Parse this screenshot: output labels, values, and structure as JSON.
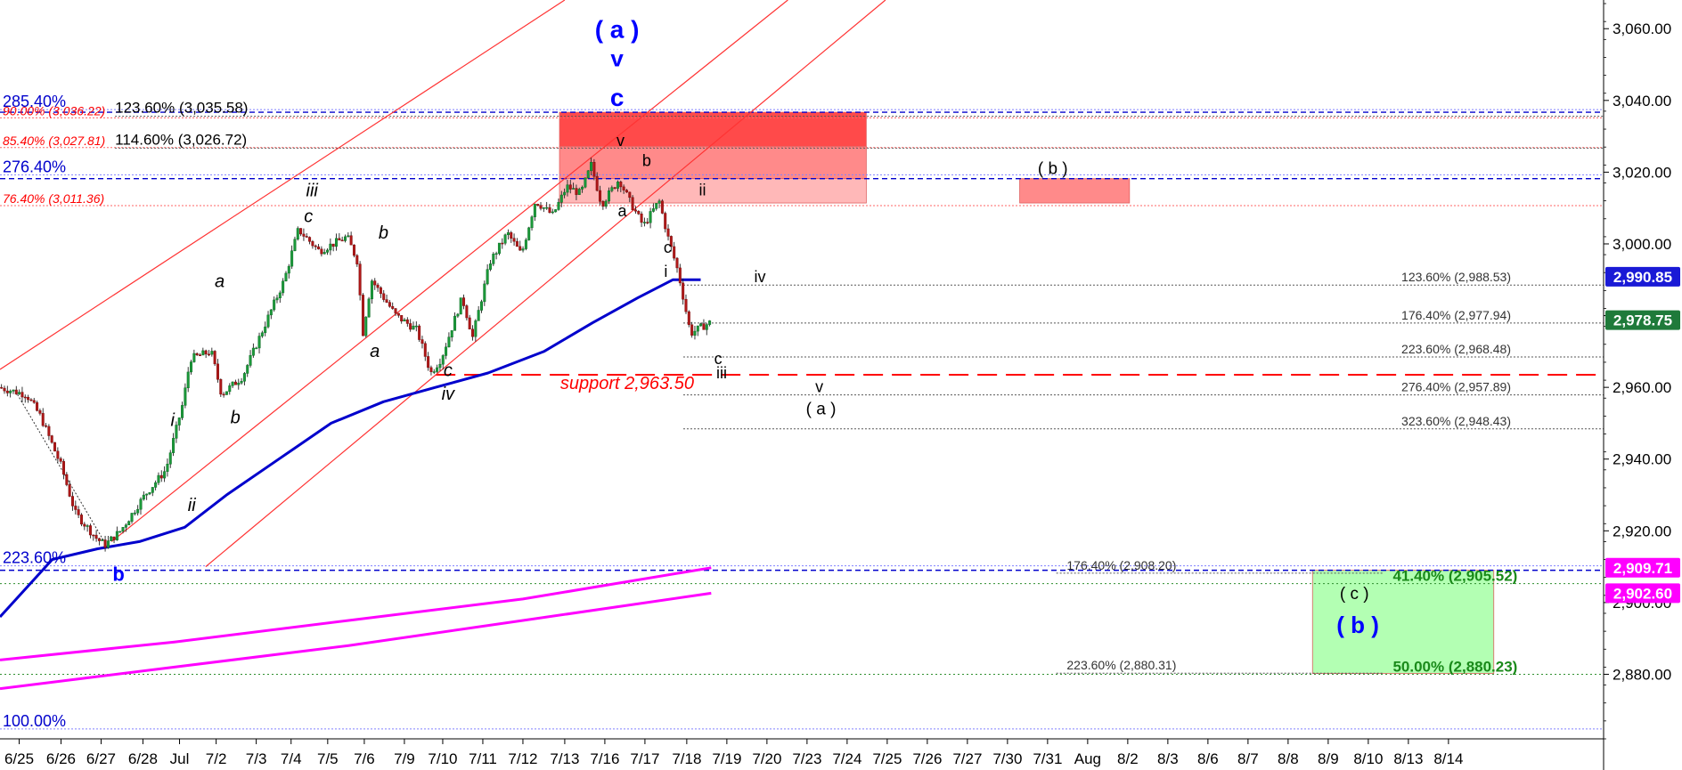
{
  "chart_data": {
    "type": "candlestick",
    "ylim": [
      2862,
      3068
    ],
    "x_range": [
      0,
      46
    ],
    "price_axis": {
      "ticks": [
        2880,
        2900,
        2920,
        2940,
        2960,
        2980,
        3000,
        3020,
        3040,
        3060
      ],
      "tick_labels": [
        "2,880.00",
        "2,900.00",
        "2,920.00",
        "2,940.00",
        "2,960.00",
        "2,980.00",
        "3,000.00",
        "3,020.00",
        "3,040.00",
        "3,060.00"
      ]
    },
    "date_axis": {
      "labels": [
        {
          "x": 0.55,
          "label": "6/25"
        },
        {
          "x": 1.75,
          "label": "6/26"
        },
        {
          "x": 2.9,
          "label": "6/27"
        },
        {
          "x": 4.1,
          "label": "6/28"
        },
        {
          "x": 5.15,
          "label": "Jul"
        },
        {
          "x": 6.2,
          "label": "7/2"
        },
        {
          "x": 7.35,
          "label": "7/3"
        },
        {
          "x": 8.35,
          "label": "7/4"
        },
        {
          "x": 9.4,
          "label": "7/5"
        },
        {
          "x": 10.45,
          "label": "7/6"
        },
        {
          "x": 11.6,
          "label": "7/9"
        },
        {
          "x": 12.7,
          "label": "7/10"
        },
        {
          "x": 13.85,
          "label": "7/11"
        },
        {
          "x": 15.0,
          "label": "7/12"
        },
        {
          "x": 16.2,
          "label": "7/13"
        },
        {
          "x": 17.35,
          "label": "7/16"
        },
        {
          "x": 18.5,
          "label": "7/17"
        },
        {
          "x": 19.7,
          "label": "7/18"
        },
        {
          "x": 20.85,
          "label": "7/19"
        },
        {
          "x": 22.0,
          "label": "7/20"
        },
        {
          "x": 23.15,
          "label": "7/23"
        },
        {
          "x": 24.3,
          "label": "7/24"
        },
        {
          "x": 25.45,
          "label": "7/25"
        },
        {
          "x": 26.6,
          "label": "7/26"
        },
        {
          "x": 27.75,
          "label": "7/27"
        },
        {
          "x": 28.9,
          "label": "7/30"
        },
        {
          "x": 30.05,
          "label": "7/31"
        },
        {
          "x": 31.2,
          "label": "Aug"
        },
        {
          "x": 32.35,
          "label": "8/2"
        },
        {
          "x": 33.5,
          "label": "8/3"
        },
        {
          "x": 34.65,
          "label": "8/6"
        },
        {
          "x": 35.8,
          "label": "8/7"
        },
        {
          "x": 36.95,
          "label": "8/8"
        },
        {
          "x": 38.1,
          "label": "8/9"
        },
        {
          "x": 39.25,
          "label": "8/10"
        },
        {
          "x": 40.4,
          "label": "8/13"
        },
        {
          "x": 41.55,
          "label": "8/14"
        }
      ]
    },
    "candles": [],
    "price_segments": [
      [
        0.0,
        2960
      ],
      [
        0.8,
        2958
      ],
      [
        1.2,
        2952
      ],
      [
        1.8,
        2938
      ],
      [
        2.2,
        2925
      ],
      [
        2.8,
        2918
      ],
      [
        3.05,
        2916
      ],
      [
        3.5,
        2920
      ],
      [
        4.2,
        2930
      ],
      [
        4.8,
        2937
      ],
      [
        5.3,
        2956
      ],
      [
        5.5,
        2968
      ],
      [
        6.1,
        2970
      ],
      [
        6.4,
        2958
      ],
      [
        7.0,
        2963
      ],
      [
        7.4,
        2972
      ],
      [
        8.2,
        2990
      ],
      [
        8.6,
        3004
      ],
      [
        9.2,
        2998
      ],
      [
        10.0,
        3002
      ],
      [
        10.3,
        2995
      ],
      [
        10.45,
        2975
      ],
      [
        10.7,
        2990
      ],
      [
        11.4,
        2980
      ],
      [
        12.0,
        2976
      ],
      [
        12.4,
        2964
      ],
      [
        12.7,
        2968
      ],
      [
        13.3,
        2985
      ],
      [
        13.6,
        2974
      ],
      [
        14.1,
        2995
      ],
      [
        14.6,
        3003
      ],
      [
        15.0,
        2997
      ],
      [
        15.4,
        3012
      ],
      [
        15.9,
        3008
      ],
      [
        16.3,
        3016
      ],
      [
        16.7,
        3014
      ],
      [
        17.0,
        3022
      ],
      [
        17.3,
        3011
      ],
      [
        17.8,
        3018
      ],
      [
        18.1,
        3012
      ],
      [
        18.5,
        3005
      ],
      [
        18.95,
        3012
      ],
      [
        19.2,
        3002
      ],
      [
        19.5,
        2992
      ],
      [
        19.85,
        2975
      ],
      [
        20.2,
        2977
      ],
      [
        20.4,
        2978
      ]
    ],
    "series": [
      {
        "name": "",
        "type": "line",
        "color": "#0000cc",
        "points": [
          [
            0,
            2896
          ],
          [
            1.5,
            2912
          ],
          [
            2.8,
            2915
          ],
          [
            4.0,
            2917
          ],
          [
            5.3,
            2921
          ],
          [
            6.5,
            2930
          ],
          [
            8.0,
            2940
          ],
          [
            9.5,
            2950
          ],
          [
            11.0,
            2956
          ],
          [
            12.5,
            2960
          ],
          [
            14.0,
            2964
          ],
          [
            15.6,
            2970
          ],
          [
            17.0,
            2978
          ],
          [
            18.3,
            2985
          ],
          [
            19.3,
            2990
          ],
          [
            20.1,
            2990
          ]
        ]
      },
      {
        "name": "",
        "type": "line",
        "color": "#ff00ff",
        "points": [
          [
            0,
            2884
          ],
          [
            5,
            2889
          ],
          [
            10,
            2895
          ],
          [
            15,
            2901
          ],
          [
            20.4,
            2909.7
          ]
        ]
      },
      {
        "name": "",
        "type": "line",
        "color": "#ff00ff",
        "points": [
          [
            0,
            2876
          ],
          [
            5,
            2882
          ],
          [
            10,
            2888
          ],
          [
            15,
            2895
          ],
          [
            20.4,
            2902.6
          ]
        ]
      }
    ],
    "channel_lines": [
      {
        "color": "#ff3333",
        "points": [
          [
            0,
            2965
          ],
          [
            16.2,
            3068
          ]
        ]
      },
      {
        "color": "#ff3333",
        "points": [
          [
            3.2,
            2917
          ],
          [
            22.6,
            3068
          ]
        ]
      },
      {
        "color": "#ff3333",
        "points": [
          [
            5.9,
            2910
          ],
          [
            25.4,
            3068
          ]
        ]
      }
    ],
    "dashed_lines": [
      {
        "color": "#ff0000",
        "style": "long-dash",
        "y": 2963.5,
        "x_from": 12.5,
        "x_to": 46,
        "label": "support 2,963.50"
      },
      {
        "color": "#0000cc",
        "style": "dash",
        "y": 3036.7,
        "x_from": 0,
        "x_to": 46
      },
      {
        "color": "#0000cc",
        "style": "dash",
        "y": 3018.2,
        "x_from": 0,
        "x_to": 46
      },
      {
        "color": "#0000cc",
        "style": "dash",
        "y": 2909.0,
        "x_from": 0,
        "x_to": 46
      }
    ],
    "left_levels": [
      {
        "y": 3038.2,
        "color": "#0000cc",
        "label": "285.40%",
        "size": 18
      },
      {
        "y": 3035.9,
        "color": "#ff0000",
        "label": "90.00% (3,036.22)",
        "size": 14,
        "italic": true
      },
      {
        "y": 3027.6,
        "color": "#ff0000",
        "label": "85.40% (3,027.81)",
        "size": 14,
        "italic": true
      },
      {
        "y": 3020.0,
        "color": "#0000cc",
        "label": "276.40%",
        "size": 18
      },
      {
        "y": 3011.4,
        "color": "#ff0000",
        "label": "76.40% (3,011.36)",
        "size": 14,
        "italic": true
      },
      {
        "y": 2911.0,
        "color": "#0000cc",
        "label": "223.60%",
        "size": 18
      },
      {
        "y": 2865.5,
        "color": "#0000cc",
        "label": "100.00%",
        "size": 18
      }
    ],
    "target_levels": [
      {
        "y": 3035.58,
        "label": "123.60% (3,035.58)",
        "color": "#000",
        "x_from": 3.3,
        "x_to": 46,
        "label_x": 3.3,
        "bold": false,
        "size": 17
      },
      {
        "y": 3026.72,
        "label": "114.60% (3,026.72)",
        "color": "#000",
        "x_from": 3.3,
        "x_to": 46,
        "label_x": 3.3,
        "bold": false,
        "size": 17
      },
      {
        "y": 2988.53,
        "label": "123.60% (2,988.53)",
        "color": "#333",
        "x_from": 19.6,
        "x_to": 46,
        "label_x": 40.2,
        "size": 14
      },
      {
        "y": 2977.94,
        "label": "176.40% (2,977.94)",
        "color": "#333",
        "x_from": 19.6,
        "x_to": 46,
        "label_x": 40.2,
        "size": 14
      },
      {
        "y": 2968.48,
        "label": "223.60% (2,968.48)",
        "color": "#333",
        "x_from": 19.6,
        "x_to": 46,
        "label_x": 40.2,
        "size": 14
      },
      {
        "y": 2957.89,
        "label": "276.40% (2,957.89)",
        "color": "#333",
        "x_from": 19.6,
        "x_to": 46,
        "label_x": 40.2,
        "size": 14
      },
      {
        "y": 2948.43,
        "label": "323.60% (2,948.43)",
        "color": "#333",
        "x_from": 19.6,
        "x_to": 46,
        "label_x": 40.2,
        "size": 14
      },
      {
        "y": 2908.2,
        "label": "176.40% (2,908.20)",
        "color": "#333",
        "x_from": 30.3,
        "x_to": 39.7,
        "label_x": 30.6,
        "size": 14
      },
      {
        "y": 2880.31,
        "label": "223.60% (2,880.31)",
        "color": "#333",
        "x_from": 30.3,
        "x_to": 39.7,
        "label_x": 30.6,
        "size": 14
      }
    ],
    "green_levels": [
      {
        "y": 2905.52,
        "label": "41.40% (2,905.52)",
        "label_x": 39.7
      },
      {
        "y": 2880.23,
        "label": "50.00% (2,880.23)",
        "label_x": 39.7
      }
    ],
    "zones": [
      {
        "color": "#ff4a4a",
        "x0": 16.05,
        "x1": 24.85,
        "y0": 3027.2,
        "y1": 3036.7
      },
      {
        "color": "#ff8a8a",
        "x0": 16.05,
        "x1": 24.85,
        "y0": 3018.2,
        "y1": 3027.2
      },
      {
        "color": "#ffb8b8",
        "x0": 16.05,
        "x1": 24.85,
        "y0": 3011.4,
        "y1": 3018.2
      },
      {
        "color": "#ff8a8a",
        "x0": 29.25,
        "x1": 32.4,
        "y0": 3011.4,
        "y1": 3018.2
      },
      {
        "color": "#b3ffb3",
        "x0": 37.65,
        "x1": 42.85,
        "y0": 2880.23,
        "y1": 2909.0
      }
    ],
    "price_badges": [
      {
        "y": 2990.85,
        "label": "2,990.85",
        "color": "#1a1ad6"
      },
      {
        "y": 2978.75,
        "label": "2,978.75",
        "color": "#1f7a3a"
      },
      {
        "y": 2909.71,
        "label": "2,909.71",
        "color": "#ff00ff"
      },
      {
        "y": 2902.6,
        "label": "2,902.60",
        "color": "#ff00ff"
      }
    ],
    "wave_labels": [
      {
        "x": 17.7,
        "y": 3057.5,
        "text": "( a )",
        "color": "#0000ff",
        "size": 28,
        "bold": true
      },
      {
        "x": 17.7,
        "y": 3049.5,
        "text": "v",
        "color": "#0000ff",
        "size": 26,
        "bold": true
      },
      {
        "x": 17.7,
        "y": 3038.5,
        "text": "c",
        "color": "#0000ff",
        "size": 28,
        "bold": true
      },
      {
        "x": 17.8,
        "y": 3027.3,
        "text": "v",
        "color": "#000",
        "size": 18
      },
      {
        "x": 18.55,
        "y": 3021.7,
        "text": "b",
        "color": "#000",
        "size": 18
      },
      {
        "x": 17.85,
        "y": 3007.7,
        "text": "a",
        "color": "#000",
        "size": 18
      },
      {
        "x": 20.15,
        "y": 3013.5,
        "text": "ii",
        "color": "#000",
        "size": 18
      },
      {
        "x": 19.15,
        "y": 2997.5,
        "text": "c",
        "color": "#000",
        "size": 18
      },
      {
        "x": 19.1,
        "y": 2990.8,
        "text": "i",
        "color": "#000",
        "size": 18
      },
      {
        "x": 21.8,
        "y": 2989.3,
        "text": "iv",
        "color": "#000",
        "size": 18
      },
      {
        "x": 20.6,
        "y": 2966.5,
        "text": "c",
        "color": "#000",
        "size": 18
      },
      {
        "x": 20.7,
        "y": 2962.5,
        "text": "iii",
        "color": "#000",
        "size": 18
      },
      {
        "x": 23.5,
        "y": 2958.7,
        "text": "v",
        "color": "#000",
        "size": 18
      },
      {
        "x": 23.55,
        "y": 2952.5,
        "text": "( a )",
        "color": "#000",
        "size": 19
      },
      {
        "x": 30.2,
        "y": 3019.5,
        "text": "( b )",
        "color": "#000",
        "size": 19
      },
      {
        "x": 38.85,
        "y": 2901.0,
        "text": "( c )",
        "color": "#000",
        "size": 19
      },
      {
        "x": 38.95,
        "y": 2891.5,
        "text": "( b )",
        "color": "#0000ff",
        "size": 26,
        "bold": true
      },
      {
        "x": 8.95,
        "y": 3013.3,
        "text": "iii",
        "color": "#000",
        "size": 20,
        "italic": true
      },
      {
        "x": 8.85,
        "y": 3006.1,
        "text": "c",
        "color": "#000",
        "size": 20,
        "italic": true
      },
      {
        "x": 11.0,
        "y": 3001.5,
        "text": "b",
        "color": "#000",
        "size": 20,
        "italic": true
      },
      {
        "x": 6.3,
        "y": 2988.0,
        "text": "a",
        "color": "#000",
        "size": 20,
        "italic": true
      },
      {
        "x": 10.75,
        "y": 2968.5,
        "text": "a",
        "color": "#000",
        "size": 20,
        "italic": true
      },
      {
        "x": 12.85,
        "y": 2956.5,
        "text": "iv",
        "color": "#000",
        "size": 20,
        "italic": true
      },
      {
        "x": 12.85,
        "y": 2963.2,
        "text": "c",
        "color": "#000",
        "size": 20,
        "italic": true
      },
      {
        "x": 6.75,
        "y": 2950.0,
        "text": "b",
        "color": "#000",
        "size": 20,
        "italic": true
      },
      {
        "x": 4.95,
        "y": 2949.3,
        "text": "i",
        "color": "#000",
        "size": 20,
        "italic": true
      },
      {
        "x": 5.5,
        "y": 2925.5,
        "text": "ii",
        "color": "#000",
        "size": 20,
        "italic": true
      },
      {
        "x": 3.4,
        "y": 2906.0,
        "text": "b",
        "color": "#0000ff",
        "size": 22,
        "bold": true
      }
    ],
    "annotations": [
      {
        "x": 16.2,
        "y": 2959.5,
        "text": "support 2,963.50",
        "color": "#ff0000",
        "size": 20,
        "italic": true
      }
    ]
  }
}
